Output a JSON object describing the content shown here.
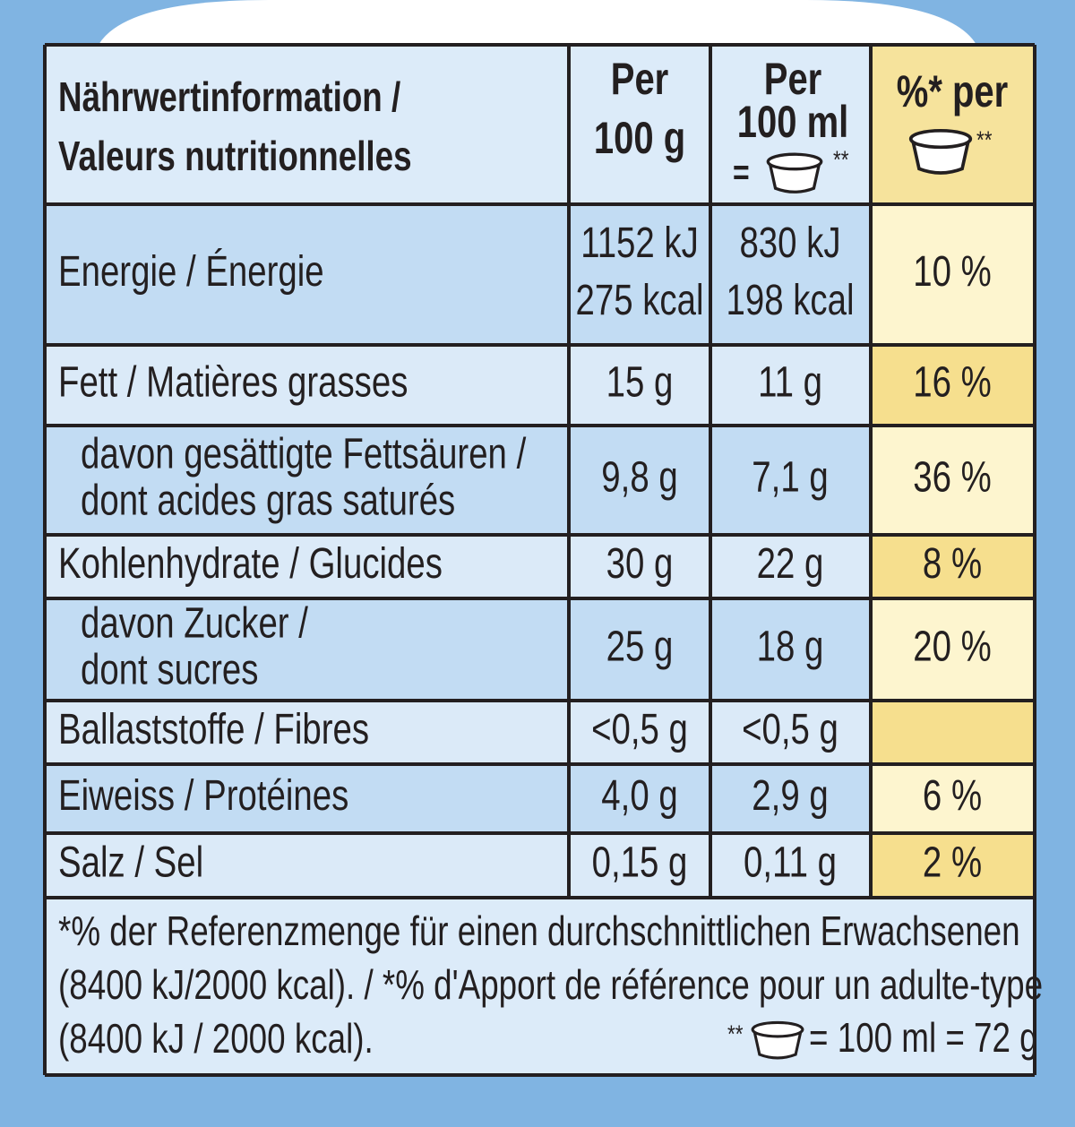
{
  "header": {
    "label": [
      "Nährwertinformation /",
      "Valeurs nutritionnelles"
    ],
    "per_100g": [
      "Per",
      "100 g"
    ],
    "per_100ml": [
      "Per",
      "100 ml",
      "=",
      "**"
    ],
    "percent": [
      "%* per",
      "**"
    ]
  },
  "rows": [
    {
      "label": [
        "Energie / Énergie"
      ],
      "per_100g": [
        "1152 kJ",
        "275 kcal"
      ],
      "per_100ml": [
        "830 kJ",
        "198 kcal"
      ],
      "percent": "10 %"
    },
    {
      "label": [
        "Fett / Matières grasses"
      ],
      "per_100g": [
        "15 g"
      ],
      "per_100ml": [
        "11 g"
      ],
      "percent": "16 %"
    },
    {
      "label": [
        "davon gesättigte Fettsäuren /",
        "dont acides gras saturés"
      ],
      "per_100g": [
        "9,8 g"
      ],
      "per_100ml": [
        "7,1 g"
      ],
      "percent": "36 %"
    },
    {
      "label": [
        "Kohlenhydrate / Glucides"
      ],
      "per_100g": [
        "30 g"
      ],
      "per_100ml": [
        "22 g"
      ],
      "percent": "8 %"
    },
    {
      "label": [
        "davon Zucker /",
        "dont sucres"
      ],
      "per_100g": [
        "25 g"
      ],
      "per_100ml": [
        "18 g"
      ],
      "percent": "20 %"
    },
    {
      "label": [
        "Ballaststoffe / Fibres"
      ],
      "per_100g": [
        "<0,5 g"
      ],
      "per_100ml": [
        "<0,5 g"
      ]
    },
    {
      "label": [
        "Eiweiss / Protéines"
      ],
      "per_100g": [
        "4,0 g"
      ],
      "per_100ml": [
        "2,9 g"
      ],
      "percent": "6 %"
    },
    {
      "label": [
        "Salz / Sel"
      ],
      "per_100g": [
        "0,15 g"
      ],
      "per_100ml": [
        "0,11 g"
      ],
      "percent": "2 %"
    }
  ],
  "footnote": {
    "lines": [
      "*% der Referenzmenge für einen durchschnittlichen Erwachsenen",
      "(8400 kJ/2000 kcal). / *% d'Apport de référence pour un adulte-type",
      "(8400 kJ / 2000 kcal)."
    ],
    "serving": [
      "**",
      "= 100 ml = 72 g"
    ]
  }
}
